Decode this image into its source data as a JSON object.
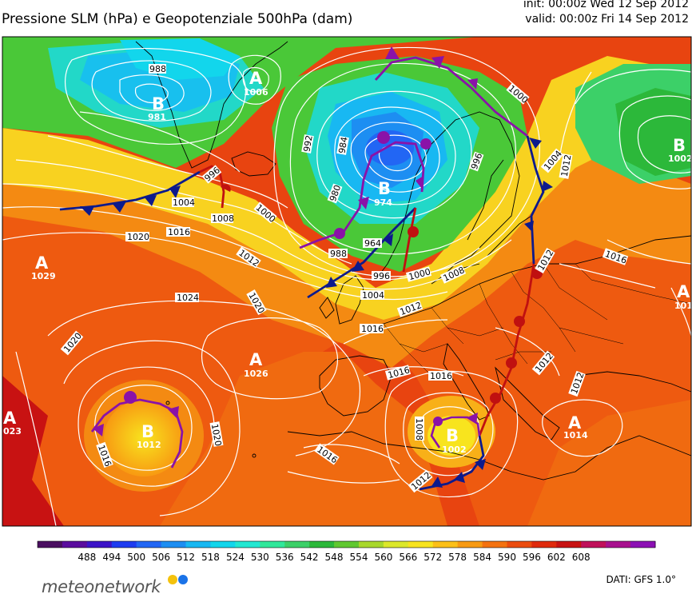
{
  "header": {
    "title": "Pressione SLM (hPa) e Geopotenziale 500hPa (dam)",
    "init": "init: 00:00z Wed 12 Sep 2012",
    "valid": "valid: 00:00z Fri 14 Sep 2012"
  },
  "legend": {
    "ticks": [
      "488",
      "494",
      "500",
      "506",
      "512",
      "518",
      "524",
      "530",
      "536",
      "542",
      "548",
      "554",
      "560",
      "566",
      "572",
      "578",
      "584",
      "590",
      "596",
      "602",
      "608"
    ],
    "colors": [
      "#4a0e60",
      "#5a0c9e",
      "#3c14c8",
      "#1e3cf0",
      "#2266f4",
      "#1d8ef2",
      "#18b8f2",
      "#12d6ec",
      "#22e8d2",
      "#30e89a",
      "#3cd068",
      "#2cb83a",
      "#60c830",
      "#a8d82c",
      "#dce82a",
      "#f8e41e",
      "#fcc018",
      "#f89a12",
      "#f47210",
      "#ec4c0e",
      "#e02a0c",
      "#c81212",
      "#c0105a",
      "#a8108e",
      "#8c10b4"
    ]
  },
  "pressure_centers": [
    {
      "type": "B",
      "value": "981"
    },
    {
      "type": "A",
      "value": "1006"
    },
    {
      "type": "B",
      "value": "974"
    },
    {
      "type": "B",
      "value": "1002"
    },
    {
      "type": "A",
      "value": "1029"
    },
    {
      "type": "A",
      "value": "1026"
    },
    {
      "type": "A",
      "value": "023"
    },
    {
      "type": "B",
      "value": "1012"
    },
    {
      "type": "B",
      "value": "1002"
    },
    {
      "type": "A",
      "value": "1014"
    },
    {
      "type": "A",
      "value": "101"
    }
  ],
  "isobar_labels": [
    "988",
    "1000",
    "992",
    "984",
    "996",
    "980",
    "996",
    "1004",
    "1008",
    "1000",
    "1020",
    "1016",
    "1012",
    "1024",
    "1020",
    "1016",
    "988",
    "964",
    "996",
    "1000",
    "1008",
    "1004",
    "1012",
    "1016",
    "1016",
    "1020",
    "1020",
    "1016",
    "1016",
    "1012",
    "1012",
    "1012",
    "1008",
    "1012",
    "1016",
    "1012",
    "1004"
  ],
  "footer": {
    "logo": "meteonetwork",
    "source": "DATI:  GFS  1.0°"
  }
}
